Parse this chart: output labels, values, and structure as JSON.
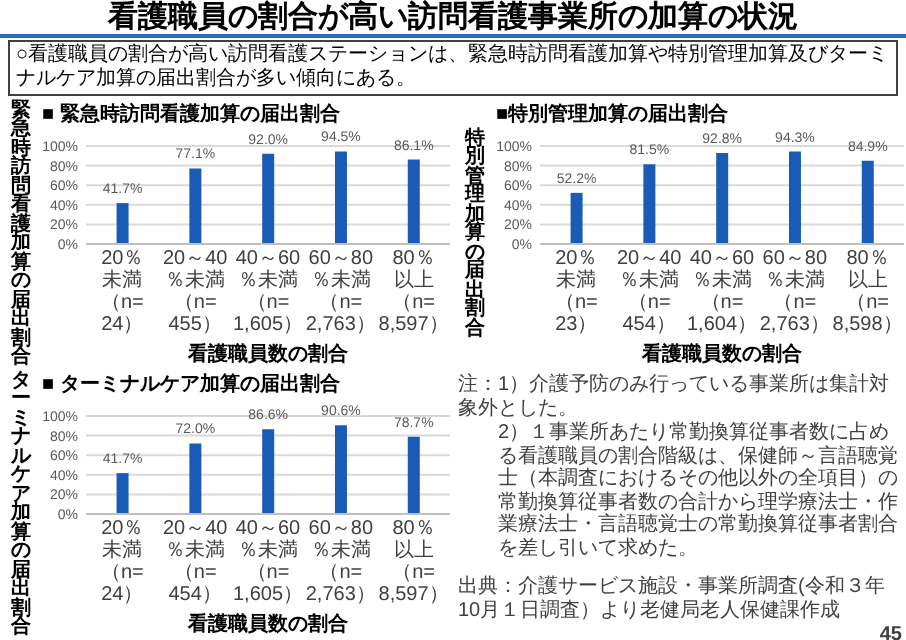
{
  "chart_data": [
    {
      "type": "other",
      "title": "看護職員の割合が高い訪問看護事業所の加算の状況",
      "subtitle": "○看護職員の割合が高い訪問看護ステーションは、緊急時訪問看護加算や特別管理加算及びターミナルケア加算の届出割合が多い傾向にある。"
    },
    {
      "type": "bar",
      "title": "■ 緊急時訪問看護加算の届出割合",
      "ylabel": "緊急時訪問看護加算の届出割合",
      "xlabel": "看護職員数の割合",
      "categories": [
        "20％未満（n=24）",
        "20～40％未満（n=455）",
        "40～60％未満（n=1,605）",
        "60～80％未満（n=2,763）",
        "80％以上（n=8,597）"
      ],
      "values": [
        41.7,
        77.1,
        92.0,
        94.5,
        86.1
      ],
      "value_labels": [
        "41.7%",
        "77.1%",
        "92.0%",
        "94.5%",
        "86.1%"
      ],
      "color": "#1a5cb5",
      "ylim": [
        0,
        100
      ],
      "yticks": [
        {
          "value": 0,
          "label": "0%"
        },
        {
          "value": 20,
          "label": "20%"
        },
        {
          "value": 40,
          "label": "40%"
        },
        {
          "value": 60,
          "label": "60%"
        },
        {
          "value": 80,
          "label": "80%"
        },
        {
          "value": 100,
          "label": "100%"
        }
      ],
      "grid": "y"
    },
    {
      "type": "bar",
      "title": "■特別管理加算の届出割合",
      "ylabel": "特別管理加算の届出割合",
      "xlabel": "看護職員数の割合",
      "categories": [
        "20％未満（n=23）",
        "20～40％未満（n=454）",
        "40～60％未満（n=1,604）",
        "60～80％未満（n=2,763）",
        "80％以上（n=8,598）"
      ],
      "values": [
        52.2,
        81.5,
        92.8,
        94.3,
        84.9
      ],
      "value_labels": [
        "52.2%",
        "81.5%",
        "92.8%",
        "94.3%",
        "84.9%"
      ],
      "color": "#1a5cb5",
      "ylim": [
        0,
        100
      ],
      "yticks": [
        {
          "value": 0,
          "label": "0%"
        },
        {
          "value": 20,
          "label": "20%"
        },
        {
          "value": 40,
          "label": "40%"
        },
        {
          "value": 60,
          "label": "60%"
        },
        {
          "value": 80,
          "label": "80%"
        },
        {
          "value": 100,
          "label": "100%"
        }
      ],
      "grid": "y"
    },
    {
      "type": "bar",
      "title": "■ ターミナルケア加算の届出割合",
      "ylabel": "ターミナルケア加算の届出割合",
      "xlabel": "看護職員数の割合",
      "categories": [
        "20％未満（n=24）",
        "20～40％未満（n=454）",
        "40～60％未満（n=1,605）",
        "60～80％未満（n=2,763）",
        "80％以上（n=8,597）"
      ],
      "values": [
        41.7,
        72.0,
        86.6,
        90.6,
        78.7
      ],
      "value_labels": [
        "41.7%",
        "72.0%",
        "86.6%",
        "90.6%",
        "78.7%"
      ],
      "color": "#1a5cb5",
      "ylim": [
        0,
        100
      ],
      "yticks": [
        {
          "value": 0,
          "label": "0%"
        },
        {
          "value": 20,
          "label": "20%"
        },
        {
          "value": 40,
          "label": "40%"
        },
        {
          "value": 60,
          "label": "60%"
        },
        {
          "value": 80,
          "label": "80%"
        },
        {
          "value": 100,
          "label": "100%"
        }
      ],
      "grid": "y"
    },
    {
      "type": "other",
      "annotations": [
        "注：1）介護予防のみ行っている事業所は集計対象外とした。",
        "2）１事業所あたり常勤換算従事者数に占める看護職員の割合階級は、保健師～言語聴覚士（本調査におけるその他以外の全項目）の常勤換算従事者数の合計から理学療法士・作業療法士・言語聴覚士の常勤換算従事者割合を差し引いて求めた。",
        "出典：介護サービス施設・事業所調査(令和３年10月１日調査）より老健局老人保健課作成",
        "45"
      ]
    }
  ]
}
